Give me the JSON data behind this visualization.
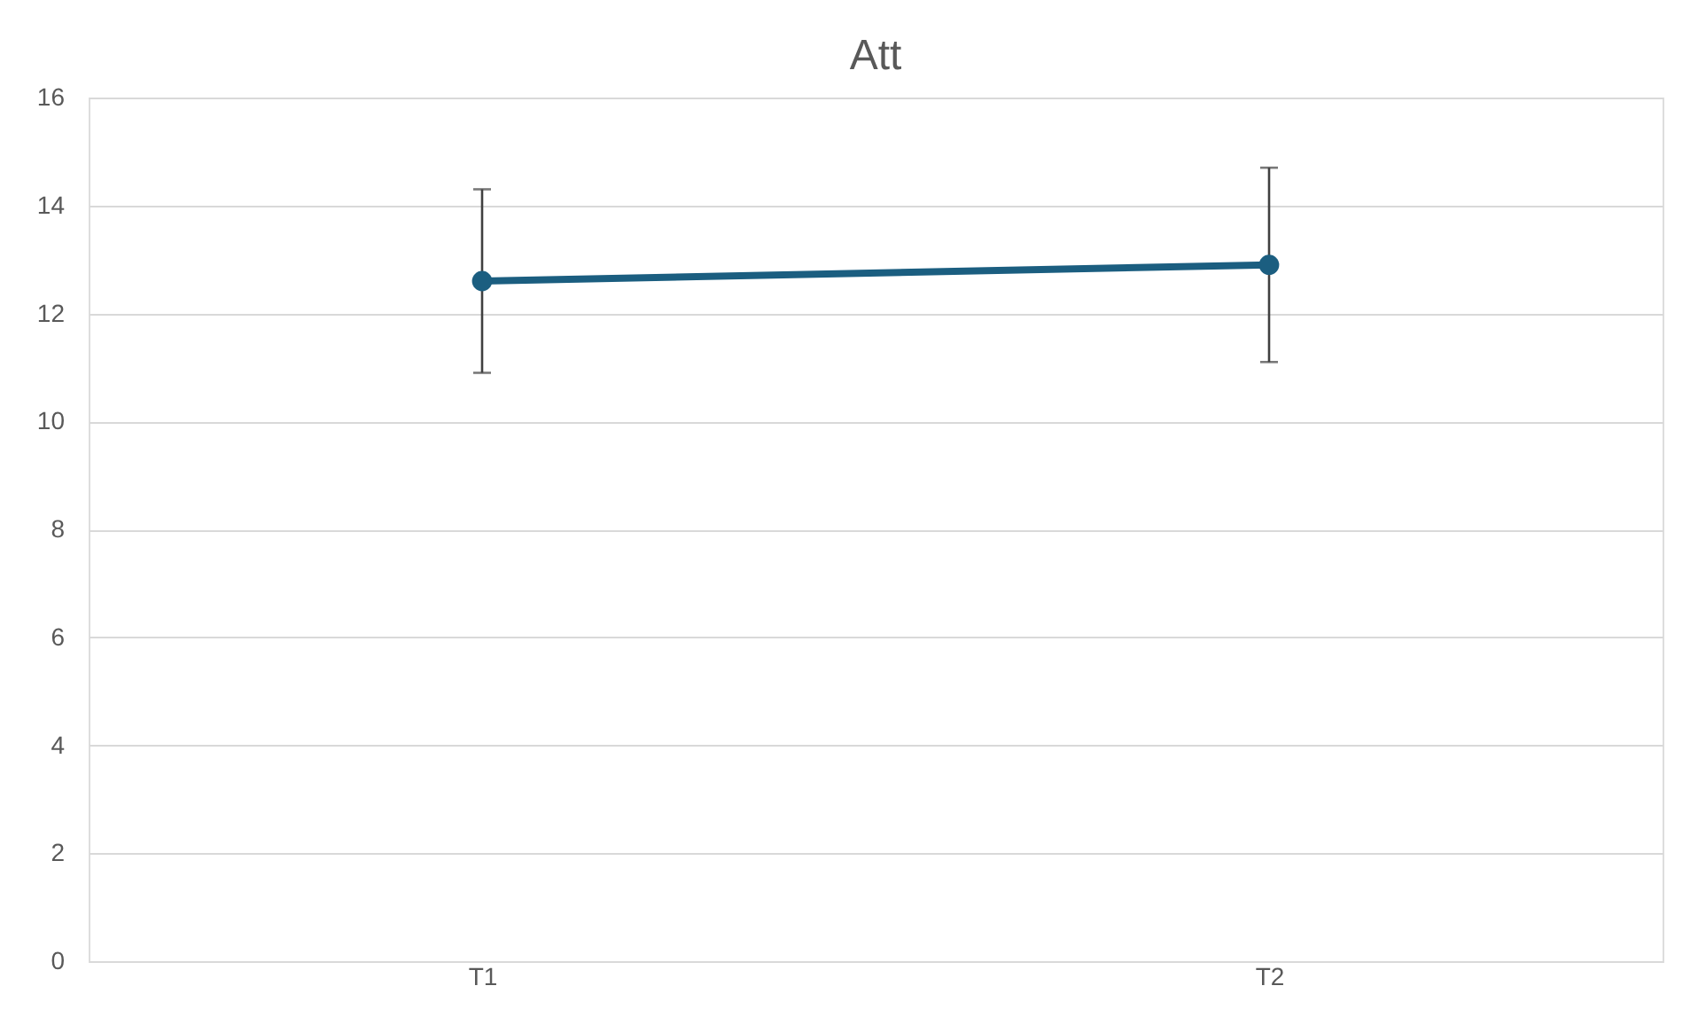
{
  "chart_data": {
    "type": "line",
    "title": "Att",
    "categories": [
      "T1",
      "T2"
    ],
    "series": [
      {
        "color": "#1b5e80",
        "values": [
          12.6,
          12.9
        ],
        "errors": [
          [
            10.9,
            14.3
          ],
          [
            11.1,
            14.7
          ]
        ]
      }
    ],
    "ylim": [
      0,
      16
    ],
    "yticks": [
      0,
      2,
      4,
      6,
      8,
      10,
      12,
      14,
      16
    ],
    "grid": "y",
    "marker": "circle"
  }
}
